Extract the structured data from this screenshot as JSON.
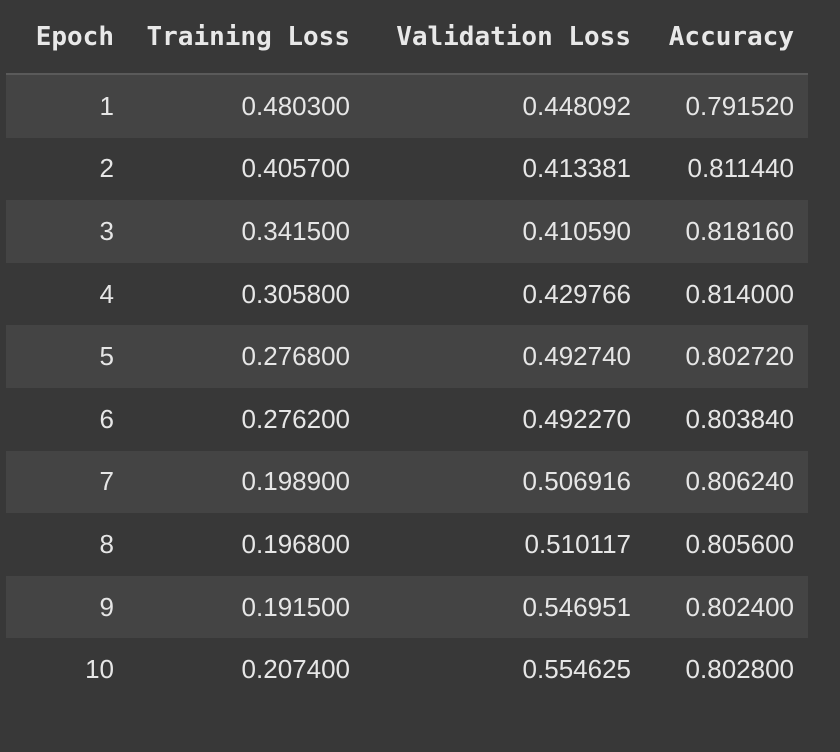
{
  "table": {
    "headers": [
      "Epoch",
      "Training Loss",
      "Validation Loss",
      "Accuracy"
    ],
    "rows": [
      [
        "1",
        "0.480300",
        "0.448092",
        "0.791520"
      ],
      [
        "2",
        "0.405700",
        "0.413381",
        "0.811440"
      ],
      [
        "3",
        "0.341500",
        "0.410590",
        "0.818160"
      ],
      [
        "4",
        "0.305800",
        "0.429766",
        "0.814000"
      ],
      [
        "5",
        "0.276800",
        "0.492740",
        "0.802720"
      ],
      [
        "6",
        "0.276200",
        "0.492270",
        "0.803840"
      ],
      [
        "7",
        "0.198900",
        "0.506916",
        "0.806240"
      ],
      [
        "8",
        "0.196800",
        "0.510117",
        "0.805600"
      ],
      [
        "9",
        "0.191500",
        "0.546951",
        "0.802400"
      ],
      [
        "10",
        "0.207400",
        "0.554625",
        "0.802800"
      ]
    ]
  },
  "colors": {
    "background": "#383838",
    "row_stripe": "#444444",
    "text": "#e6e6e6"
  }
}
